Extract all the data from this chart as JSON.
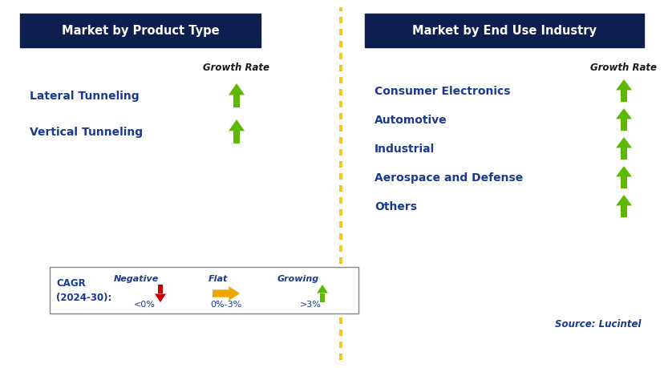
{
  "left_title": "Market by Product Type",
  "right_title": "Market by End Use Industry",
  "left_items": [
    "Lateral Tunneling",
    "Vertical Tunneling"
  ],
  "right_items": [
    "Consumer Electronics",
    "Automotive",
    "Industrial",
    "Aerospace and Defense",
    "Others"
  ],
  "growth_rate_label": "Growth Rate",
  "header_bg_color": "#0d1f4e",
  "header_text_color": "#ffffff",
  "item_text_color": "#1a3a8f",
  "growth_rate_text_color": "#1a1a1a",
  "arrow_green": "#5cb800",
  "arrow_red": "#cc0000",
  "arrow_yellow": "#f0a500",
  "divider_color": "#f5c518",
  "bg_color": "#ffffff",
  "legend_label_line1": "CAGR",
  "legend_label_line2": "(2024-30):",
  "legend_negative": "Negative",
  "legend_negative_value": "<0%",
  "legend_flat": "Flat",
  "legend_flat_value": "0%-3%",
  "legend_growing": "Growing",
  "legend_growing_value": ">3%",
  "source_text": "Source: Lucintel",
  "fig_width": 8.29,
  "fig_height": 4.6,
  "dpi": 100
}
